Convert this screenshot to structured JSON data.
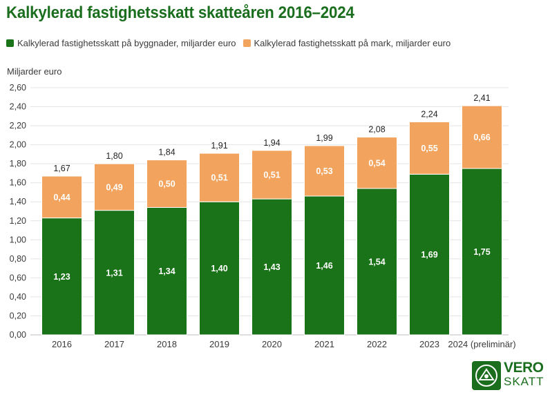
{
  "title": "Kalkylerad fastighetsskatt skatteåren 2016–2024",
  "colors": {
    "buildings": "#1b7319",
    "land": "#f2a45e",
    "title": "#1a6e1e"
  },
  "logo": {
    "line1": "VERO",
    "line2": "SKATT"
  },
  "chart_data": {
    "type": "bar",
    "stacked": true,
    "title": "Kalkylerad fastighetsskatt skatteåren 2016–2024",
    "ylabel": "Miljarder euro",
    "ylim": [
      0,
      2.6
    ],
    "yticks": [
      "0,00",
      "0,20",
      "0,40",
      "0,60",
      "0,80",
      "1,00",
      "1,20",
      "1,40",
      "1,60",
      "1,80",
      "2,00",
      "2,20",
      "2,40",
      "2,60"
    ],
    "grid": true,
    "legend_position": "top",
    "categories": [
      "2016",
      "2017",
      "2018",
      "2019",
      "2020",
      "2021",
      "2022",
      "2023",
      "2024 (preliminär)"
    ],
    "series": [
      {
        "name": "Kalkylerad fastighetsskatt på byggnader, miljarder euro",
        "values": [
          1.23,
          1.31,
          1.34,
          1.4,
          1.43,
          1.46,
          1.54,
          1.69,
          1.75
        ],
        "labels": [
          "1,23",
          "1,31",
          "1,34",
          "1,40",
          "1,43",
          "1,46",
          "1,54",
          "1,69",
          "1,75"
        ]
      },
      {
        "name": "Kalkylerad fastighetsskatt på mark, miljarder euro",
        "values": [
          0.44,
          0.49,
          0.5,
          0.51,
          0.51,
          0.53,
          0.54,
          0.55,
          0.66
        ],
        "labels": [
          "0,44",
          "0,49",
          "0,50",
          "0,51",
          "0,51",
          "0,53",
          "0,54",
          "0,55",
          "0,66"
        ]
      }
    ],
    "totals": [
      1.67,
      1.8,
      1.84,
      1.91,
      1.94,
      1.99,
      2.08,
      2.24,
      2.41
    ],
    "total_labels": [
      "1,67",
      "1,80",
      "1,84",
      "1,91",
      "1,94",
      "1,99",
      "2,08",
      "2,24",
      "2,41"
    ]
  }
}
